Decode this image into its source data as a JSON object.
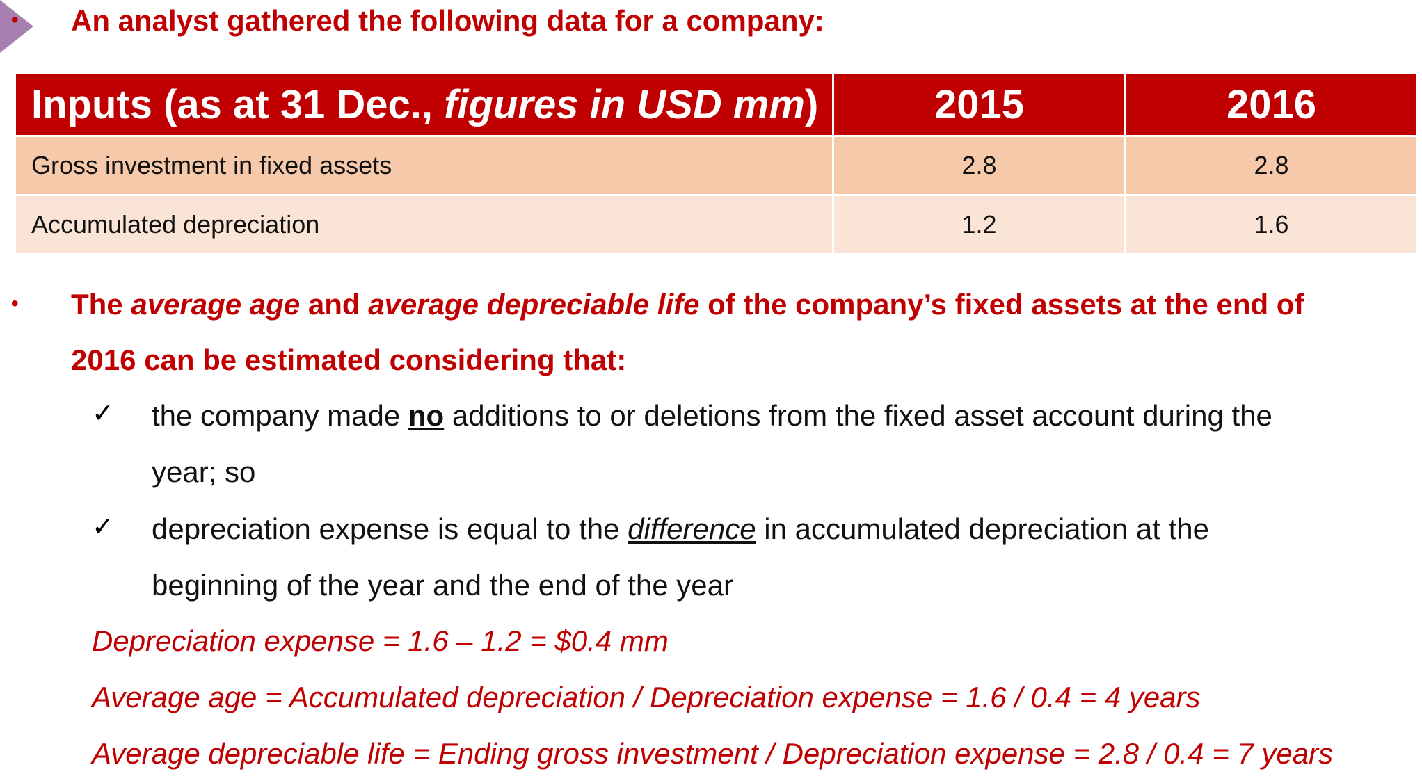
{
  "intro": {
    "bullet": "•",
    "text": "An analyst gathered the following data for a company:"
  },
  "table": {
    "header": {
      "label_a": "Inputs (as at 31 Dec., ",
      "label_b": "figures in USD mm",
      "label_c": ")",
      "year_1": "2015",
      "year_2": "2016"
    },
    "rows": [
      {
        "label": "Gross investment in fixed assets",
        "v2015": "2.8",
        "v2016": "2.8"
      },
      {
        "label": "Accumulated depreciation",
        "v2015": "1.2",
        "v2016": "1.6"
      }
    ]
  },
  "question": {
    "bullet": "•",
    "line1_a": "The ",
    "line1_b": "average age",
    "line1_c": " and ",
    "line1_d": "average depreciable life",
    "line1_e": " of the company’s fixed assets at the end of",
    "line2": "2016 can be estimated considering that:"
  },
  "assumptions": {
    "check_symbol": "✓",
    "item1_a": "the company made ",
    "item1_b": "no",
    "item1_c": " additions to or deletions from the fixed asset account during the",
    "item1_line2": "year; so",
    "item2_a": "depreciation expense is equal to the ",
    "item2_b": "difference",
    "item2_c": " in accumulated depreciation at the",
    "item2_line2": "beginning of the year and the end of the year"
  },
  "calculations": [
    "Depreciation expense = 1.6 – 1.2 = $0.4 mm",
    "Average age = Accumulated depreciation / Depreciation expense = 1.6 / 0.4 = 4 years",
    "Average depreciable life = Ending gross investment / Depreciation expense = 2.8 / 0.4 = 7 years"
  ],
  "colors": {
    "accent_red": "#c00000",
    "row_dark": "#f6c9ab",
    "row_light": "#fae4d6",
    "corner_marker": "#a77fb3"
  }
}
